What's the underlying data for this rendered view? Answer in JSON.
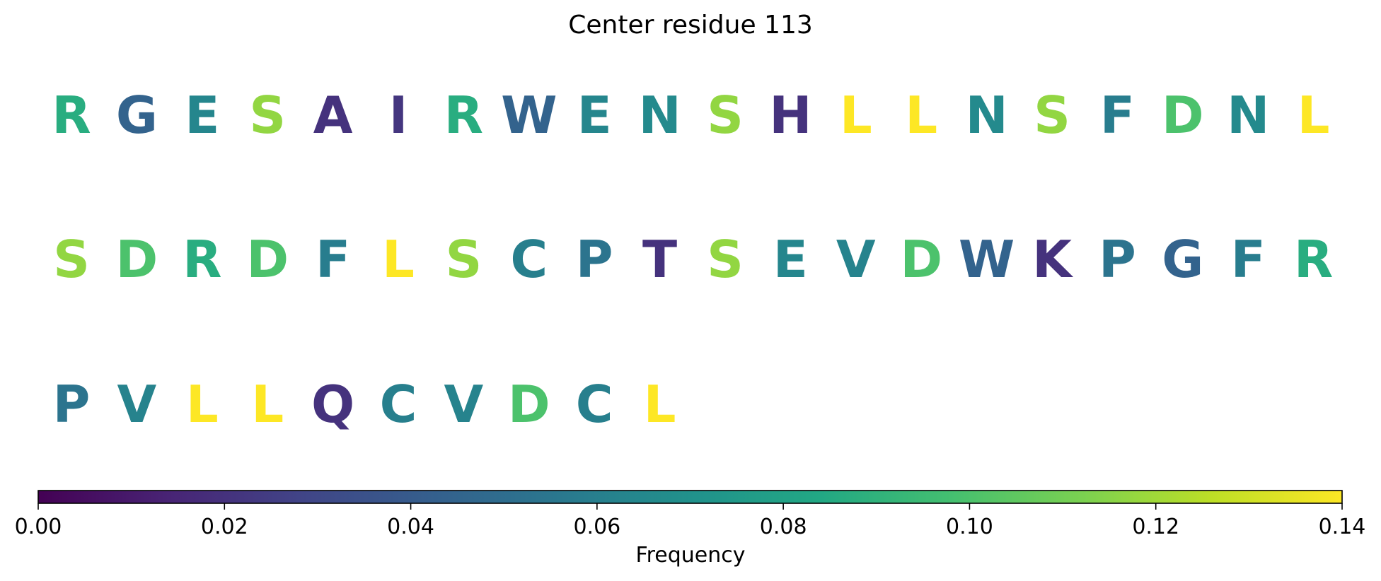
{
  "chart_data": {
    "type": "heatmap",
    "title": "Center residue 113",
    "colormap": "viridis",
    "grid": false,
    "residues": [
      {
        "letter": "R",
        "frequency": 0.087
      },
      {
        "letter": "G",
        "frequency": 0.044
      },
      {
        "letter": "E",
        "frequency": 0.064
      },
      {
        "letter": "S",
        "frequency": 0.117
      },
      {
        "letter": "A",
        "frequency": 0.02
      },
      {
        "letter": "I",
        "frequency": 0.022
      },
      {
        "letter": "R",
        "frequency": 0.087
      },
      {
        "letter": "W",
        "frequency": 0.044
      },
      {
        "letter": "E",
        "frequency": 0.064
      },
      {
        "letter": "N",
        "frequency": 0.066
      },
      {
        "letter": "S",
        "frequency": 0.117
      },
      {
        "letter": "H",
        "frequency": 0.02
      },
      {
        "letter": "L",
        "frequency": 0.14
      },
      {
        "letter": "L",
        "frequency": 0.14
      },
      {
        "letter": "N",
        "frequency": 0.066
      },
      {
        "letter": "S",
        "frequency": 0.117
      },
      {
        "letter": "F",
        "frequency": 0.059
      },
      {
        "letter": "D",
        "frequency": 0.1
      },
      {
        "letter": "N",
        "frequency": 0.066
      },
      {
        "letter": "L",
        "frequency": 0.14
      },
      {
        "letter": "S",
        "frequency": 0.117
      },
      {
        "letter": "D",
        "frequency": 0.1
      },
      {
        "letter": "R",
        "frequency": 0.087
      },
      {
        "letter": "D",
        "frequency": 0.1
      },
      {
        "letter": "F",
        "frequency": 0.059
      },
      {
        "letter": "L",
        "frequency": 0.14
      },
      {
        "letter": "S",
        "frequency": 0.117
      },
      {
        "letter": "C",
        "frequency": 0.06
      },
      {
        "letter": "P",
        "frequency": 0.054
      },
      {
        "letter": "T",
        "frequency": 0.02
      },
      {
        "letter": "S",
        "frequency": 0.117
      },
      {
        "letter": "E",
        "frequency": 0.064
      },
      {
        "letter": "V",
        "frequency": 0.062
      },
      {
        "letter": "D",
        "frequency": 0.1
      },
      {
        "letter": "W",
        "frequency": 0.044
      },
      {
        "letter": "K",
        "frequency": 0.02
      },
      {
        "letter": "P",
        "frequency": 0.054
      },
      {
        "letter": "G",
        "frequency": 0.044
      },
      {
        "letter": "F",
        "frequency": 0.059
      },
      {
        "letter": "R",
        "frequency": 0.087
      },
      {
        "letter": "P",
        "frequency": 0.054
      },
      {
        "letter": "V",
        "frequency": 0.062
      },
      {
        "letter": "L",
        "frequency": 0.14
      },
      {
        "letter": "L",
        "frequency": 0.14
      },
      {
        "letter": "Q",
        "frequency": 0.02
      },
      {
        "letter": "C",
        "frequency": 0.06
      },
      {
        "letter": "V",
        "frequency": 0.062
      },
      {
        "letter": "D",
        "frequency": 0.1
      },
      {
        "letter": "C",
        "frequency": 0.06
      },
      {
        "letter": "L",
        "frequency": 0.14
      }
    ],
    "colorbar": {
      "label": "Frequency",
      "range": [
        0.0,
        0.14
      ],
      "orientation": "horizontal",
      "placement": "bottom",
      "ticks": [
        0.0,
        0.02,
        0.04,
        0.06,
        0.08,
        0.1,
        0.12,
        0.14
      ],
      "tick_labels": [
        "0.00",
        "0.02",
        "0.04",
        "0.06",
        "0.08",
        "0.10",
        "0.12",
        "0.14"
      ]
    }
  }
}
